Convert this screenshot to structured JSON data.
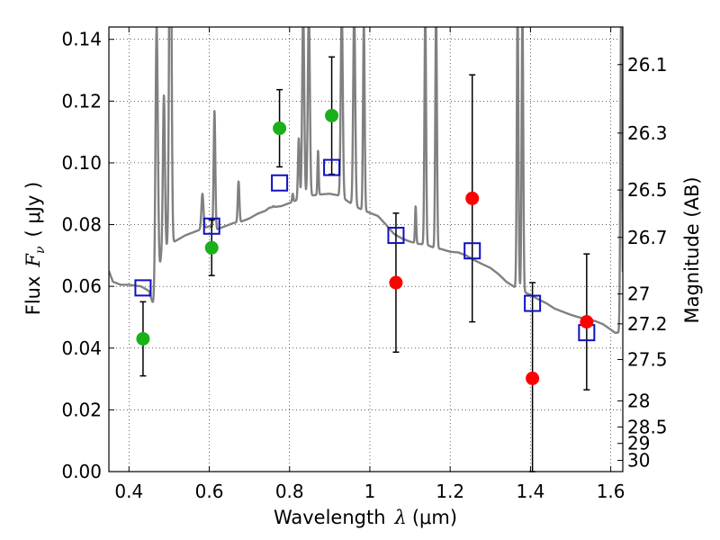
{
  "chart_data": {
    "type": "scatter",
    "title": "",
    "xlabel": "Wavelength",
    "xlabel_symbol": "λ",
    "xlabel_unit": "(μm)",
    "ylabel": "Flux",
    "ylabel_symbol": "F",
    "ylabel_subscript": "ν",
    "ylabel_unit": "( μJy )",
    "ylabel_right": "Magnitude (AB)",
    "xlim": [
      0.35,
      1.63
    ],
    "ylim": [
      0.0,
      0.144
    ],
    "grid": true,
    "grid_style": "dotted",
    "x_ticks": [
      0.4,
      0.6,
      0.8,
      1.0,
      1.2,
      1.4,
      1.6
    ],
    "x_tick_labels": [
      "0.4",
      "0.6",
      "0.8",
      "1",
      "1.2",
      "1.4",
      "1.6"
    ],
    "y_ticks": [
      0.0,
      0.02,
      0.04,
      0.06,
      0.08,
      0.1,
      0.12,
      0.14
    ],
    "y_tick_labels": [
      "0.00",
      "0.02",
      "0.04",
      "0.06",
      "0.08",
      "0.10",
      "0.12",
      "0.14"
    ],
    "right_ticks": [
      {
        "mag": 26.1,
        "label": "26.1"
      },
      {
        "mag": 26.3,
        "label": "26.3"
      },
      {
        "mag": 26.5,
        "label": "26.5"
      },
      {
        "mag": 26.7,
        "label": "26.7"
      },
      {
        "mag": 27.0,
        "label": "27"
      },
      {
        "mag": 27.2,
        "label": "27.2"
      },
      {
        "mag": 27.5,
        "label": "27.5"
      },
      {
        "mag": 28.0,
        "label": "28"
      },
      {
        "mag": 28.5,
        "label": "28.5"
      },
      {
        "mag": 29.0,
        "label": "29"
      },
      {
        "mag": 30.0,
        "label": "30"
      }
    ],
    "colors": {
      "detection": "#1ab01a",
      "nondetection": "#ff0000",
      "model": "#1010c0",
      "sed": "#808080",
      "errorbar": "#000000"
    },
    "series": [
      {
        "kind": "detection",
        "points": [
          {
            "x": 0.435,
            "y": 0.043,
            "yerr": 0.012
          },
          {
            "x": 0.606,
            "y": 0.0725,
            "yerr": 0.009
          },
          {
            "x": 0.775,
            "y": 0.1112,
            "yerr": 0.0125
          },
          {
            "x": 0.905,
            "y": 0.1153,
            "yerr": 0.019
          }
        ]
      },
      {
        "kind": "nondetection",
        "points": [
          {
            "x": 1.065,
            "y": 0.0612,
            "yerr": 0.0225
          },
          {
            "x": 1.255,
            "y": 0.0885,
            "yerr": 0.04
          },
          {
            "x": 1.405,
            "y": 0.0302,
            "yerr": 0.031
          },
          {
            "x": 1.54,
            "y": 0.0485,
            "yerr": 0.022
          }
        ]
      },
      {
        "kind": "model",
        "points": [
          {
            "x": 0.435,
            "y": 0.0595
          },
          {
            "x": 0.606,
            "y": 0.0795
          },
          {
            "x": 0.775,
            "y": 0.0935
          },
          {
            "x": 0.905,
            "y": 0.0985
          },
          {
            "x": 1.065,
            "y": 0.0765
          },
          {
            "x": 1.255,
            "y": 0.0715
          },
          {
            "x": 1.405,
            "y": 0.0545
          },
          {
            "x": 1.54,
            "y": 0.045
          }
        ]
      }
    ],
    "sed_continuum": [
      [
        0.35,
        0.065
      ],
      [
        0.36,
        0.0615
      ],
      [
        0.38,
        0.0605
      ],
      [
        0.4,
        0.0605
      ],
      [
        0.43,
        0.06
      ],
      [
        0.45,
        0.0585
      ],
      [
        0.465,
        0.052
      ],
      [
        0.48,
        0.0695
      ],
      [
        0.5,
        0.0735
      ],
      [
        0.52,
        0.075
      ],
      [
        0.54,
        0.0765
      ],
      [
        0.56,
        0.0775
      ],
      [
        0.58,
        0.0785
      ],
      [
        0.6,
        0.0795
      ],
      [
        0.62,
        0.0785
      ],
      [
        0.64,
        0.0795
      ],
      [
        0.66,
        0.0805
      ],
      [
        0.68,
        0.081
      ],
      [
        0.7,
        0.082
      ],
      [
        0.72,
        0.0835
      ],
      [
        0.74,
        0.0845
      ],
      [
        0.75,
        0.0855
      ],
      [
        0.78,
        0.086
      ],
      [
        0.8,
        0.087
      ],
      [
        0.82,
        0.088
      ],
      [
        0.84,
        0.089
      ],
      [
        0.86,
        0.0895
      ],
      [
        0.88,
        0.0898
      ],
      [
        0.9,
        0.09
      ],
      [
        0.92,
        0.0895
      ],
      [
        0.94,
        0.088
      ],
      [
        0.96,
        0.0862
      ],
      [
        0.98,
        0.0848
      ],
      [
        1.0,
        0.0838
      ],
      [
        1.02,
        0.0828
      ],
      [
        1.04,
        0.08
      ],
      [
        1.06,
        0.077
      ],
      [
        1.08,
        0.0755
      ],
      [
        1.1,
        0.0745
      ],
      [
        1.12,
        0.0738
      ],
      [
        1.14,
        0.0735
      ],
      [
        1.16,
        0.0725
      ],
      [
        1.18,
        0.072
      ],
      [
        1.2,
        0.0712
      ],
      [
        1.22,
        0.071
      ],
      [
        1.24,
        0.07
      ],
      [
        1.26,
        0.0685
      ],
      [
        1.28,
        0.0672
      ],
      [
        1.3,
        0.066
      ],
      [
        1.32,
        0.064
      ],
      [
        1.34,
        0.0615
      ],
      [
        1.36,
        0.0598
      ],
      [
        1.38,
        0.0585
      ],
      [
        1.4,
        0.0572
      ],
      [
        1.42,
        0.0558
      ],
      [
        1.44,
        0.0545
      ],
      [
        1.46,
        0.0528
      ],
      [
        1.48,
        0.0518
      ],
      [
        1.5,
        0.0508
      ],
      [
        1.52,
        0.05
      ],
      [
        1.54,
        0.0495
      ],
      [
        1.56,
        0.0488
      ],
      [
        1.58,
        0.0478
      ],
      [
        1.6,
        0.046
      ],
      [
        1.61,
        0.045
      ],
      [
        1.62,
        0.045
      ],
      [
        1.63,
        0.048
      ]
    ],
    "sed_lines": [
      {
        "x": 0.469,
        "y": 0.144,
        "w": 0.006
      },
      {
        "x": 0.487,
        "y": 0.122,
        "w": 0.005
      },
      {
        "x": 0.502,
        "y": 0.148,
        "w": 0.005
      },
      {
        "x": 0.504,
        "y": 0.148,
        "w": 0.005
      },
      {
        "x": 0.583,
        "y": 0.09,
        "w": 0.005
      },
      {
        "x": 0.613,
        "y": 0.117,
        "w": 0.004
      },
      {
        "x": 0.673,
        "y": 0.094,
        "w": 0.004
      },
      {
        "x": 0.76,
        "y": 0.086,
        "w": 0.003
      },
      {
        "x": 0.808,
        "y": 0.09,
        "w": 0.003
      },
      {
        "x": 0.823,
        "y": 0.108,
        "w": 0.004
      },
      {
        "x": 0.834,
        "y": 0.15,
        "w": 0.005
      },
      {
        "x": 0.848,
        "y": 0.15,
        "w": 0.005
      },
      {
        "x": 0.871,
        "y": 0.104,
        "w": 0.003
      },
      {
        "x": 0.93,
        "y": 0.15,
        "w": 0.005
      },
      {
        "x": 0.961,
        "y": 0.15,
        "w": 0.005
      },
      {
        "x": 0.985,
        "y": 0.145,
        "w": 0.004
      },
      {
        "x": 1.114,
        "y": 0.086,
        "w": 0.003
      },
      {
        "x": 1.138,
        "y": 0.15,
        "w": 0.004
      },
      {
        "x": 1.165,
        "y": 0.15,
        "w": 0.004
      },
      {
        "x": 1.368,
        "y": 0.15,
        "w": 0.004
      },
      {
        "x": 1.38,
        "y": 0.15,
        "w": 0.004
      },
      {
        "x": 1.626,
        "y": 0.15,
        "w": 0.004
      }
    ]
  }
}
